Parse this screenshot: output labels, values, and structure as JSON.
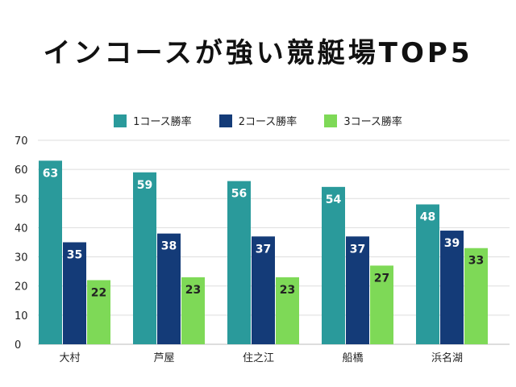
{
  "title": "インコースが強い競艇場TOP5",
  "colors": {
    "series1": "#2a9a9b",
    "series2": "#143b78",
    "series3": "#7ed957"
  },
  "chart_data": {
    "type": "bar",
    "categories": [
      "大村",
      "芦屋",
      "住之江",
      "船橋",
      "浜名湖"
    ],
    "series": [
      {
        "name": "1コース勝率",
        "values": [
          63,
          59,
          56,
          54,
          48
        ]
      },
      {
        "name": "2コース勝率",
        "values": [
          35,
          38,
          37,
          37,
          39
        ]
      },
      {
        "name": "3コース勝率",
        "values": [
          22,
          23,
          23,
          27,
          33
        ]
      }
    ],
    "ylim": [
      0,
      70
    ],
    "yticks": [
      0,
      10,
      20,
      30,
      40,
      50,
      60,
      70
    ],
    "grid": true,
    "legend": "top-center",
    "data_labels": true
  }
}
